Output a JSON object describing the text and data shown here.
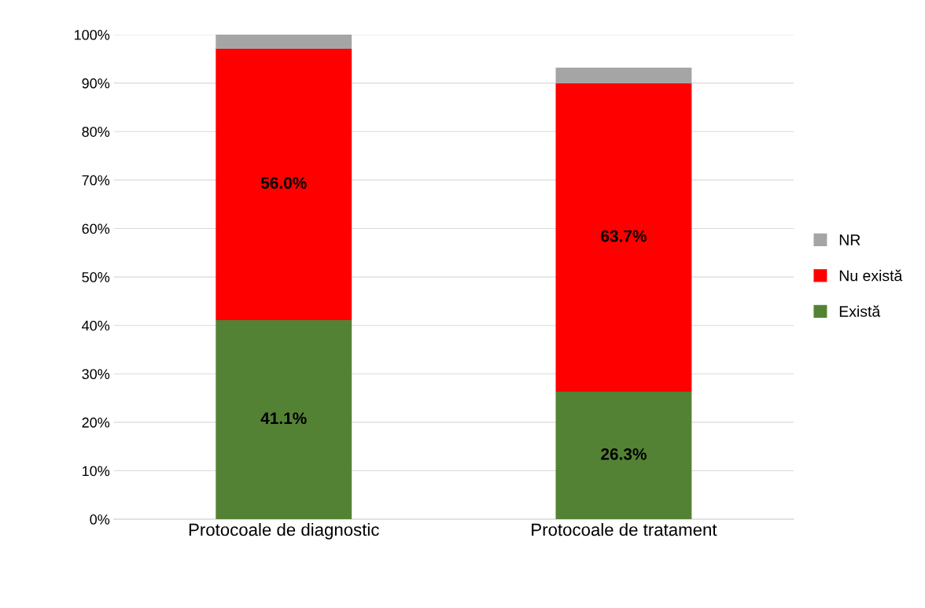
{
  "chart_data": {
    "type": "bar",
    "stacked": true,
    "categories": [
      "Protocoale de diagnostic",
      "Protocoale de tratament"
    ],
    "series": [
      {
        "name": "Există",
        "color": "#548235",
        "values": [
          41.1,
          26.3
        ],
        "value_labels": [
          "41.1%",
          "26.3%"
        ]
      },
      {
        "name": "Nu există",
        "color": "#ff0000",
        "values": [
          56.0,
          63.7
        ],
        "value_labels": [
          "56.0%",
          "63.7%"
        ]
      },
      {
        "name": "NR",
        "color": "#a5a5a5",
        "values": [
          2.9,
          3.2
        ]
      }
    ],
    "ylim": [
      0,
      100
    ],
    "yticks": [
      {
        "value": 0,
        "label": "0%"
      },
      {
        "value": 10,
        "label": "10%"
      },
      {
        "value": 20,
        "label": "20%"
      },
      {
        "value": 30,
        "label": "30%"
      },
      {
        "value": 40,
        "label": "40%"
      },
      {
        "value": 50,
        "label": "50%"
      },
      {
        "value": 60,
        "label": "60%"
      },
      {
        "value": 70,
        "label": "70%"
      },
      {
        "value": 80,
        "label": "80%"
      },
      {
        "value": 90,
        "label": "90%"
      },
      {
        "value": 100,
        "label": "100%"
      }
    ],
    "grid": "y",
    "legend": "right"
  }
}
